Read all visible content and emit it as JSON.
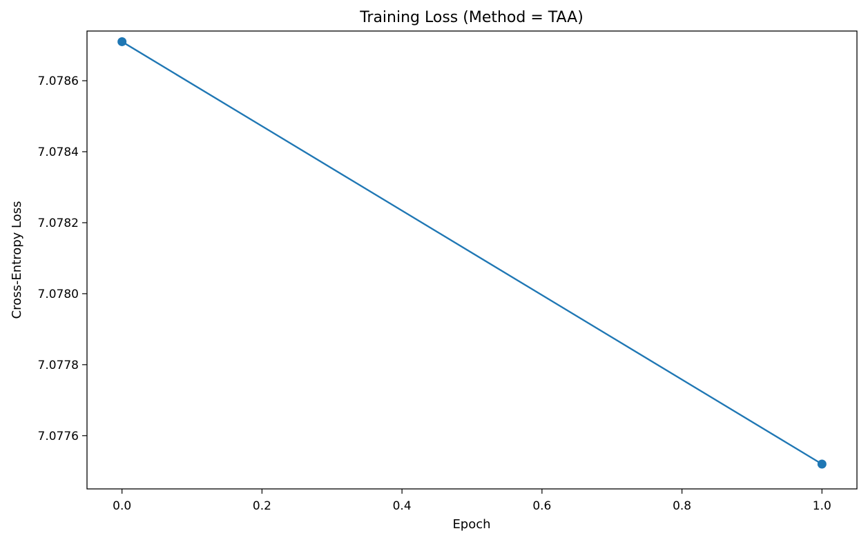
{
  "chart_data": {
    "type": "line",
    "title": "Training Loss (Method = TAA)",
    "xlabel": "Epoch",
    "ylabel": "Cross-Entropy Loss",
    "xlim": [
      -0.05,
      1.05
    ],
    "ylim": [
      7.07745,
      7.07874
    ],
    "x_ticks": [
      0.0,
      0.2,
      0.4,
      0.6,
      0.8,
      1.0
    ],
    "x_tick_labels": [
      "0.0",
      "0.2",
      "0.4",
      "0.6",
      "0.8",
      "1.0"
    ],
    "y_ticks": [
      7.0776,
      7.0778,
      7.078,
      7.0782,
      7.0784,
      7.0786
    ],
    "y_tick_labels": [
      "7.0776",
      "7.0778",
      "7.0780",
      "7.0782",
      "7.0784",
      "7.0786"
    ],
    "grid": false,
    "legend": false,
    "series": [
      {
        "x": [
          0,
          1
        ],
        "y": [
          7.07871,
          7.07752
        ],
        "color": "#1f77b4",
        "marker": "circle"
      }
    ]
  }
}
